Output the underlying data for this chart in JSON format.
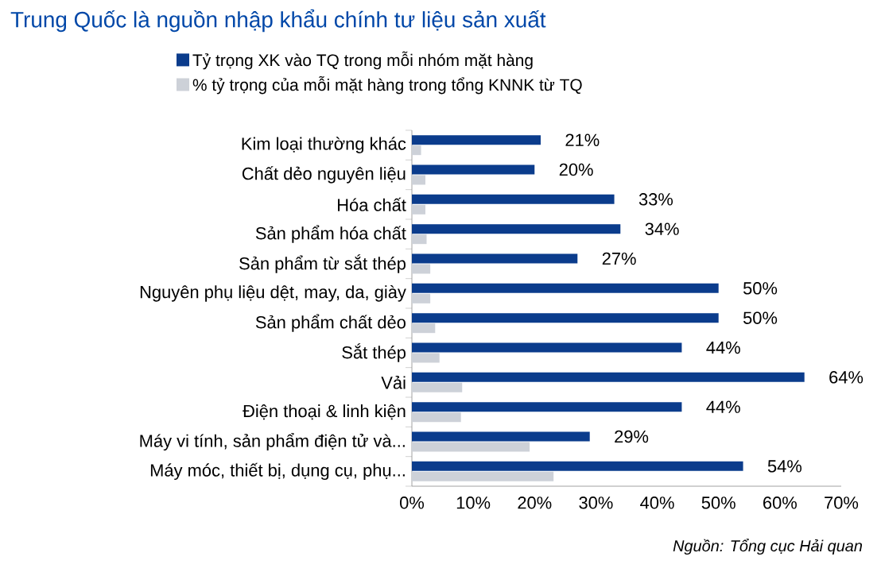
{
  "chart_data": {
    "type": "bar",
    "orientation": "horizontal",
    "title": "Trung Quốc là nguồn nhập khẩu chính tư liệu sản xuất",
    "categories": [
      "Kim loại thường khác",
      "Chất dẻo nguyên liệu",
      "Hóa chất",
      "Sản phẩm hóa chất",
      "Sản phẩm từ sắt thép",
      "Nguyên phụ liệu dệt, may, da, giày",
      "Sản phẩm chất dẻo",
      "Sắt thép",
      "Vải",
      "Điện thoại & linh kiện",
      "Máy vi tính, sản phẩm điện tử và...",
      "Máy móc, thiết bị, dụng cụ, phụ..."
    ],
    "series": [
      {
        "name": "Tỷ trọng XK vào TQ trong mỗi nhóm mặt hàng",
        "color": "#0b3c8c",
        "values": [
          21,
          20,
          33,
          34,
          27,
          50,
          50,
          44,
          64,
          44,
          29,
          54
        ],
        "value_labels": [
          "21%",
          "20%",
          "33%",
          "34%",
          "27%",
          "50%",
          "50%",
          "44%",
          "64%",
          "44%",
          "29%",
          "54%"
        ]
      },
      {
        "name": "% tỷ trọng của mỗi mặt hàng trong tổng KNNK từ TQ",
        "color": "#cdd1d8",
        "values": [
          1.5,
          2.2,
          2.2,
          2.4,
          3.0,
          3.0,
          3.8,
          4.5,
          8.2,
          8.0,
          19.2,
          23.1
        ]
      }
    ],
    "xlim": [
      0,
      70
    ],
    "xticks": [
      {
        "value": 0,
        "label": "0%"
      },
      {
        "value": 10,
        "label": "10%"
      },
      {
        "value": 20,
        "label": "20%"
      },
      {
        "value": 30,
        "label": "30%"
      },
      {
        "value": 40,
        "label": "40%"
      },
      {
        "value": 50,
        "label": "50%"
      },
      {
        "value": 60,
        "label": "60%"
      },
      {
        "value": 70,
        "label": "70%"
      }
    ],
    "legend": "top",
    "grid": false,
    "annotations": [
      "Nguồn: Tổng cục Hải quan"
    ]
  }
}
